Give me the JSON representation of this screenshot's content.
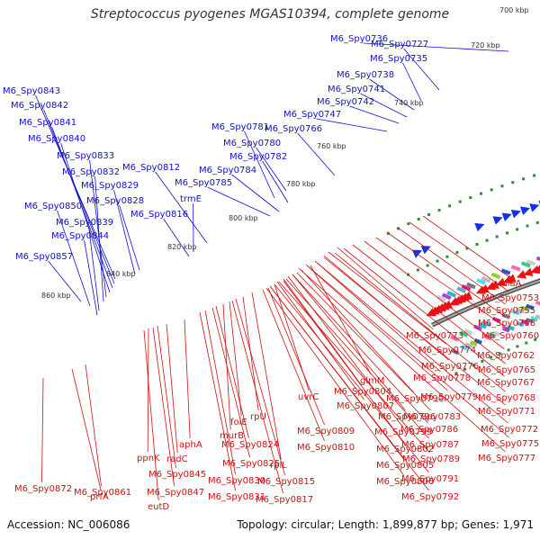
{
  "title": "Streptococcus pyogenes MGAS10394, complete genome",
  "footer": {
    "accession": "Accession: NC_006086",
    "summary": "Topology: circular; Length: 1,899,877 bp; Genes: 1,971"
  },
  "colors": {
    "forward_label": "#1010cc",
    "reverse_label": "#d01010",
    "backbone": "#888888",
    "dots": "#2e8b2e"
  },
  "scale_ticks": [
    "700 kbp",
    "720 kbp",
    "740 kbp",
    "760 kbp",
    "780 kbp",
    "800 kbp",
    "820 kbp",
    "840 kbp",
    "860 kbp"
  ],
  "forward_labels": [
    "M6_Spy0736",
    "M6_Spy0727",
    "M6_Spy0735",
    "M6_Spy0738",
    "M6_Spy0741",
    "M6_Spy0742",
    "M6_Spy0747",
    "M6_Spy0781",
    "M6_Spy0766",
    "M6_Spy0780",
    "M6_Spy0782",
    "M6_Spy0784",
    "M6_Spy0785",
    "M6_Spy0812",
    "trmE",
    "M6_Spy0816",
    "M6_Spy0843",
    "M6_Spy0842",
    "M6_Spy0841",
    "M6_Spy0840",
    "M6_Spy0833",
    "M6_Spy0832",
    "M6_Spy0829",
    "M6_Spy0828",
    "M6_Spy0850",
    "M6_Spy0839",
    "M6_Spy0844",
    "M6_Spy0857"
  ],
  "reverse_labels": [
    "miaA",
    "M6_Spy0753",
    "M6_Spy0755",
    "M6_Spy0758",
    "M6_Spy0760",
    "M6_Spy0773",
    "M6_Spy0774",
    "M6_Spy0762",
    "M6_Spy0776",
    "M6_Spy0765",
    "M6_Spy0778",
    "M6_Spy0767",
    "glmM",
    "M6_Spy0779",
    "M6_Spy0768",
    "M6_Spy0790",
    "M6_Spy0804",
    "M6_Spy0771",
    "M6_Spy0807",
    "M6_Spy0796",
    "M6_Spy0783",
    "M6_Spy0772",
    "uvrC",
    "M6_Spy0799",
    "M6_Spy0786",
    "rpU",
    "M6_Spy0809",
    "M6_Spy0775",
    "folE",
    "M6_Spy0787",
    "M6_Spy0802",
    "murB",
    "M6_Spy0810",
    "M6_Spy0777",
    "M6_Spy0789",
    "aphA",
    "M6_Spy0824",
    "rplL",
    "M6_Spy0805",
    "radC",
    "M6_Spy0825",
    "ppnK",
    "M6_Spy0845",
    "M6_Spy0830",
    "M6_Spy0806",
    "M6_Spy0791",
    "prfA",
    "M6_Spy0872",
    "M6_Spy0861",
    "M6_Spy0847",
    "M6_Spy0815",
    "M6_Spy0831",
    "M6_Spy0817",
    "M6_Spy0792",
    "eutD"
  ]
}
